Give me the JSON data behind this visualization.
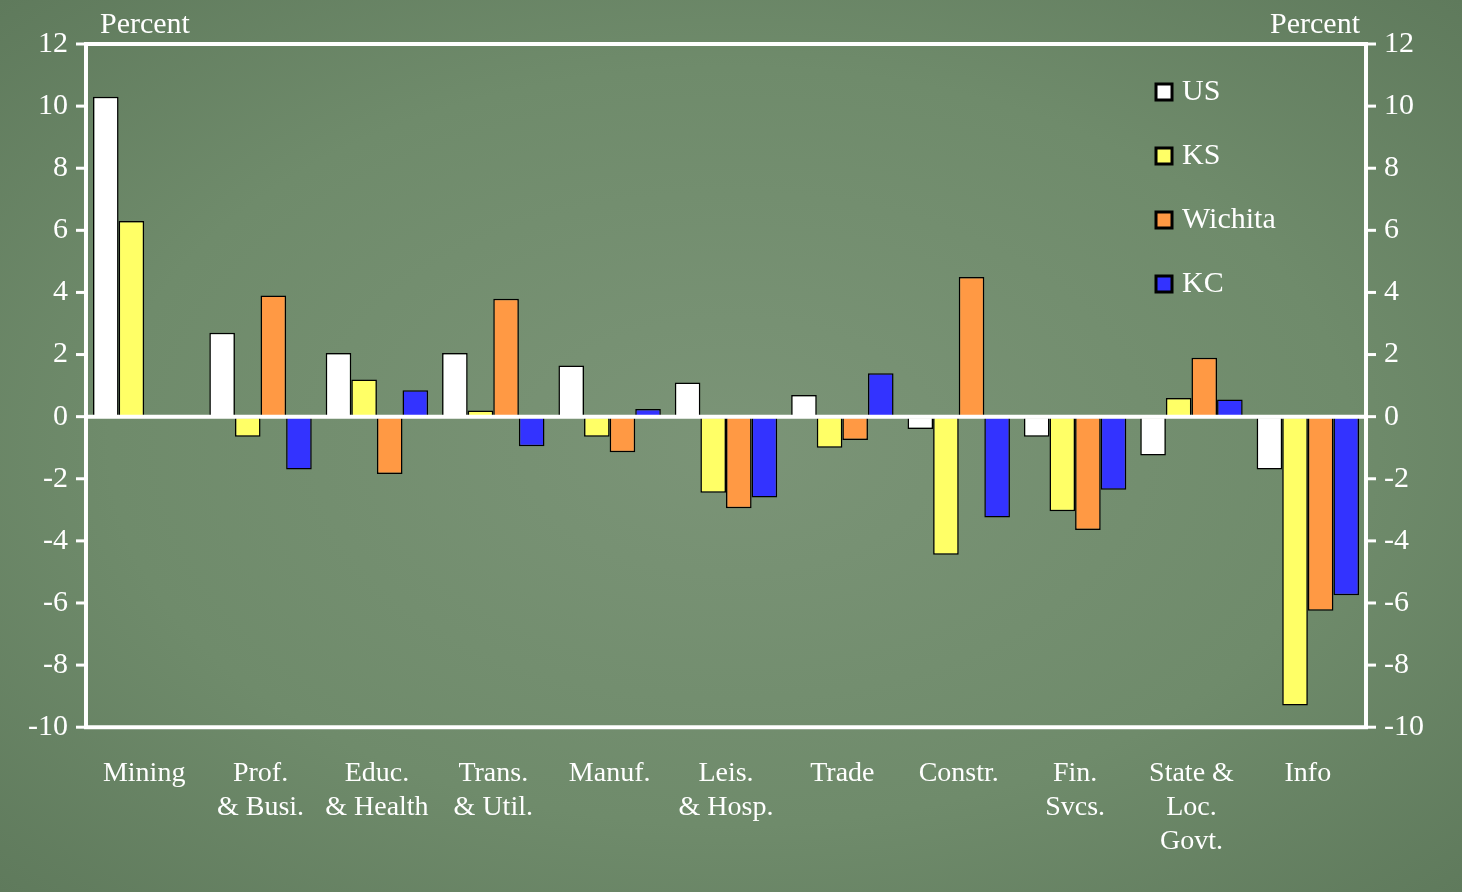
{
  "chart_data": {
    "type": "bar",
    "ylabel": "Percent",
    "y2label": "Percent",
    "categories": [
      "Mining",
      "Prof.\n& Busi.",
      "Educ.\n& Health",
      "Trans.\n& Util.",
      "Manuf.",
      "Leis.\n& Hosp.",
      "Trade",
      "Constr.",
      "Fin.\nSvcs.",
      "State &\nLoc.\nGovt.",
      "Info"
    ],
    "series": [
      {
        "name": "US",
        "color": "#ffffff",
        "values": [
          10.3,
          2.7,
          2.05,
          2.05,
          1.65,
          1.1,
          0.7,
          -0.4,
          -0.65,
          -1.25,
          -1.7
        ]
      },
      {
        "name": "KS",
        "color": "#ffff66",
        "values": [
          6.3,
          -0.65,
          1.2,
          0.2,
          -0.65,
          -2.45,
          -1.0,
          -4.45,
          -3.05,
          0.6,
          -9.3
        ]
      },
      {
        "name": "Wichita",
        "color": "#ff9944",
        "values": [
          null,
          3.9,
          -1.85,
          3.8,
          -1.15,
          -2.95,
          -0.75,
          4.5,
          -3.65,
          1.9,
          -6.25
        ]
      },
      {
        "name": "KC",
        "color": "#3333ff",
        "values": [
          null,
          -1.7,
          0.85,
          -0.95,
          0.25,
          -2.6,
          1.4,
          -3.25,
          -2.35,
          0.55,
          -5.75
        ]
      }
    ],
    "ylim": [
      -10,
      12
    ],
    "yticks": [
      -10,
      -8,
      -6,
      -4,
      -2,
      0,
      2,
      4,
      6,
      8,
      10,
      12
    ],
    "y2lim": [
      -10,
      12
    ],
    "y2ticks": [
      -10,
      -8,
      -6,
      -4,
      -2,
      0,
      2,
      4,
      6,
      8,
      10,
      12
    ],
    "ref_lines": [
      {
        "axis": "y",
        "value": 0,
        "color": "#ffffff"
      }
    ],
    "grid": false,
    "legend": "top right"
  }
}
